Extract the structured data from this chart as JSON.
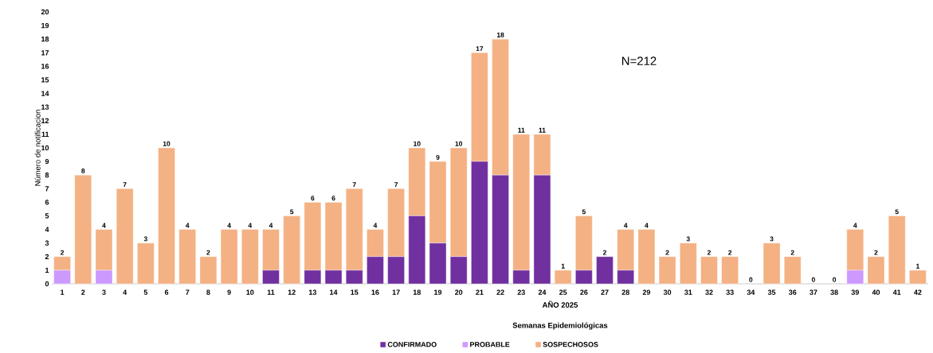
{
  "chart_data": {
    "type": "bar",
    "stacked": true,
    "xlabel": "Semanas Epidemiológicas",
    "ylabel": "Número de notificacion",
    "categories": [
      "1",
      "2",
      "3",
      "4",
      "5",
      "6",
      "7",
      "8",
      "9",
      "10",
      "11",
      "12",
      "13",
      "14",
      "15",
      "16",
      "17",
      "18",
      "19",
      "20",
      "21",
      "22",
      "23",
      "24",
      "25",
      "26",
      "27",
      "28",
      "29",
      "30",
      "31",
      "32",
      "33",
      "34",
      "35",
      "36",
      "37",
      "38",
      "39",
      "40",
      "41",
      "42"
    ],
    "series": [
      {
        "name": "CONFIRMADO",
        "color": "#7030a0",
        "values": [
          0,
          0,
          0,
          0,
          0,
          0,
          0,
          0,
          0,
          0,
          1,
          0,
          1,
          1,
          1,
          2,
          2,
          5,
          3,
          2,
          9,
          8,
          1,
          8,
          0,
          1,
          2,
          1,
          0,
          0,
          0,
          0,
          0,
          0,
          0,
          0,
          0,
          0,
          0,
          0,
          0,
          0
        ]
      },
      {
        "name": "PROBABLE",
        "color": "#cc99ff",
        "values": [
          1,
          0,
          1,
          0,
          0,
          0,
          0,
          0,
          0,
          0,
          0,
          0,
          0,
          0,
          0,
          0,
          0,
          0,
          0,
          0,
          0,
          0,
          0,
          0,
          0,
          0,
          0,
          0,
          0,
          0,
          0,
          0,
          0,
          0,
          0,
          0,
          0,
          0,
          1,
          0,
          0,
          0
        ]
      },
      {
        "name": "SOSPECHOSOS",
        "color": "#f4b183",
        "values": [
          1,
          8,
          3,
          7,
          3,
          10,
          4,
          2,
          4,
          4,
          3,
          5,
          5,
          5,
          6,
          2,
          5,
          5,
          6,
          8,
          8,
          10,
          10,
          3,
          1,
          4,
          0,
          3,
          4,
          2,
          3,
          2,
          2,
          0,
          3,
          2,
          0,
          0,
          3,
          2,
          5,
          1
        ]
      }
    ],
    "totals": [
      "2",
      "8",
      "4",
      "7",
      "3",
      "10",
      "4",
      "2",
      "4",
      "4",
      "4",
      "5",
      "6",
      "6",
      "7",
      "4",
      "7",
      "10",
      "9",
      "10",
      "17",
      "18",
      "11",
      "11",
      "1",
      "5",
      "2",
      "4",
      "4",
      "2",
      "3",
      "2",
      "2",
      "0",
      "3",
      "2",
      "0",
      "0",
      "4",
      "2",
      "5",
      "1"
    ],
    "ylim": [
      0,
      20
    ],
    "yticks": [
      0,
      1,
      2,
      3,
      4,
      5,
      6,
      7,
      8,
      9,
      10,
      11,
      12,
      13,
      14,
      15,
      16,
      17,
      18,
      19,
      20
    ],
    "annotations": [
      "AÑO 2025",
      "N=212"
    ],
    "legend": "bottom"
  }
}
